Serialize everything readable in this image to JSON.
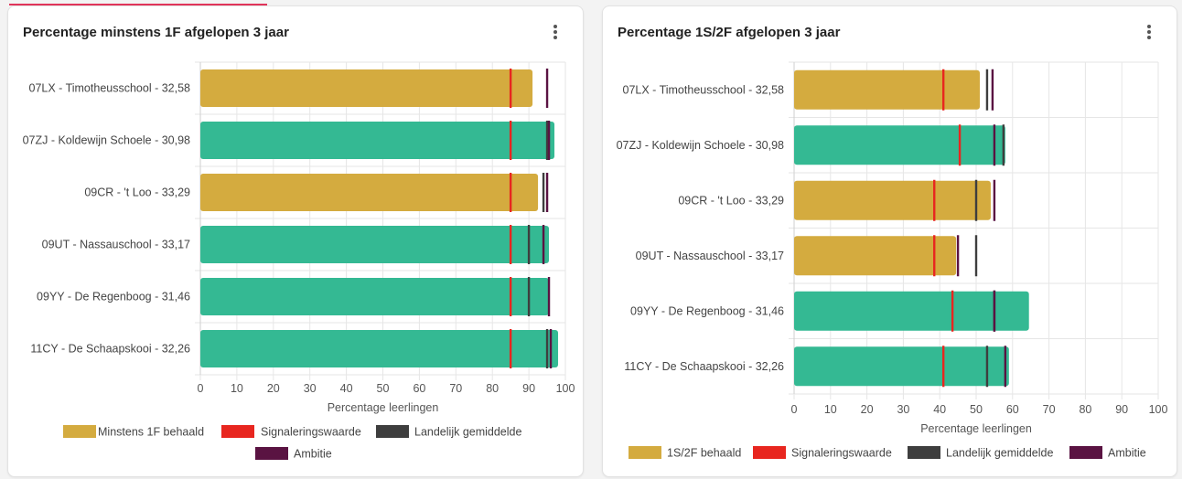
{
  "accent_color": "#e0345a",
  "menu_icon": "kebab-menu-icon",
  "charts": [
    {
      "title": "Percentage minstens 1F afgelopen 3 jaar",
      "chart_data": {
        "type": "bar",
        "orientation": "horizontal",
        "categories": [
          "07LX - Timotheusschool - 32,58",
          "07ZJ - Koldewijn Schoele - 30,98",
          "09CR - 't Loo - 33,29",
          "09UT - Nassauschool - 33,17",
          "09YY - De Regenboog - 31,46",
          "11CY - De Schaapskooi - 32,26"
        ],
        "series": [
          {
            "name": "Minstens 1F behaald",
            "values": [
              91,
              97,
              92.5,
              95.5,
              95.5,
              98
            ],
            "colors": [
              "#d4ab3f",
              "#34b993",
              "#d4ab3f",
              "#34b993",
              "#34b993",
              "#34b993"
            ]
          },
          {
            "name": "Signaleringswaarde",
            "values": [
              85,
              85,
              85,
              85,
              85,
              85
            ],
            "color": "#e8261f"
          },
          {
            "name": "Landelijk gemiddelde",
            "values": [
              null,
              95,
              94,
              90,
              90,
              95
            ],
            "color": "#3e3e3e"
          },
          {
            "name": "Ambitie",
            "values": [
              95,
              95.5,
              95,
              94,
              95.5,
              96
            ],
            "color": "#5a1342"
          }
        ],
        "xlabel": "Percentage leerlingen",
        "xlim": [
          0,
          100
        ],
        "xticks": [
          "0",
          "10",
          "20",
          "30",
          "40",
          "50",
          "60",
          "70",
          "80",
          "90",
          "100"
        ],
        "legend_position": "bottom",
        "grid": true
      }
    },
    {
      "title": "Percentage 1S/2F afgelopen 3 jaar",
      "chart_data": {
        "type": "bar",
        "orientation": "horizontal",
        "categories": [
          "07LX - Timotheusschool - 32,58",
          "07ZJ - Koldewijn Schoele - 30,98",
          "09CR - 't Loo - 33,29",
          "09UT - Nassauschool - 33,17",
          "09YY - De Regenboog - 31,46",
          "11CY - De Schaapskooi - 32,26"
        ],
        "series": [
          {
            "name": "1S/2F behaald",
            "values": [
              51,
              58,
              54,
              44.5,
              64.5,
              59
            ],
            "colors": [
              "#d4ab3f",
              "#34b993",
              "#d4ab3f",
              "#d4ab3f",
              "#34b993",
              "#34b993"
            ]
          },
          {
            "name": "Signaleringswaarde",
            "values": [
              41,
              45.5,
              38.5,
              38.5,
              43.5,
              41
            ],
            "color": "#e8261f"
          },
          {
            "name": "Landelijk gemiddelde",
            "values": [
              53,
              57.5,
              50,
              50,
              55,
              53
            ],
            "color": "#3e3e3e"
          },
          {
            "name": "Ambitie",
            "values": [
              54.5,
              55,
              55,
              45,
              55,
              58
            ],
            "color": "#5a1342"
          }
        ],
        "xlabel": "Percentage leerlingen",
        "xlim": [
          0,
          100
        ],
        "xticks": [
          "0",
          "10",
          "20",
          "30",
          "40",
          "50",
          "60",
          "70",
          "80",
          "90",
          "100"
        ],
        "legend_position": "bottom",
        "grid": true
      }
    }
  ]
}
